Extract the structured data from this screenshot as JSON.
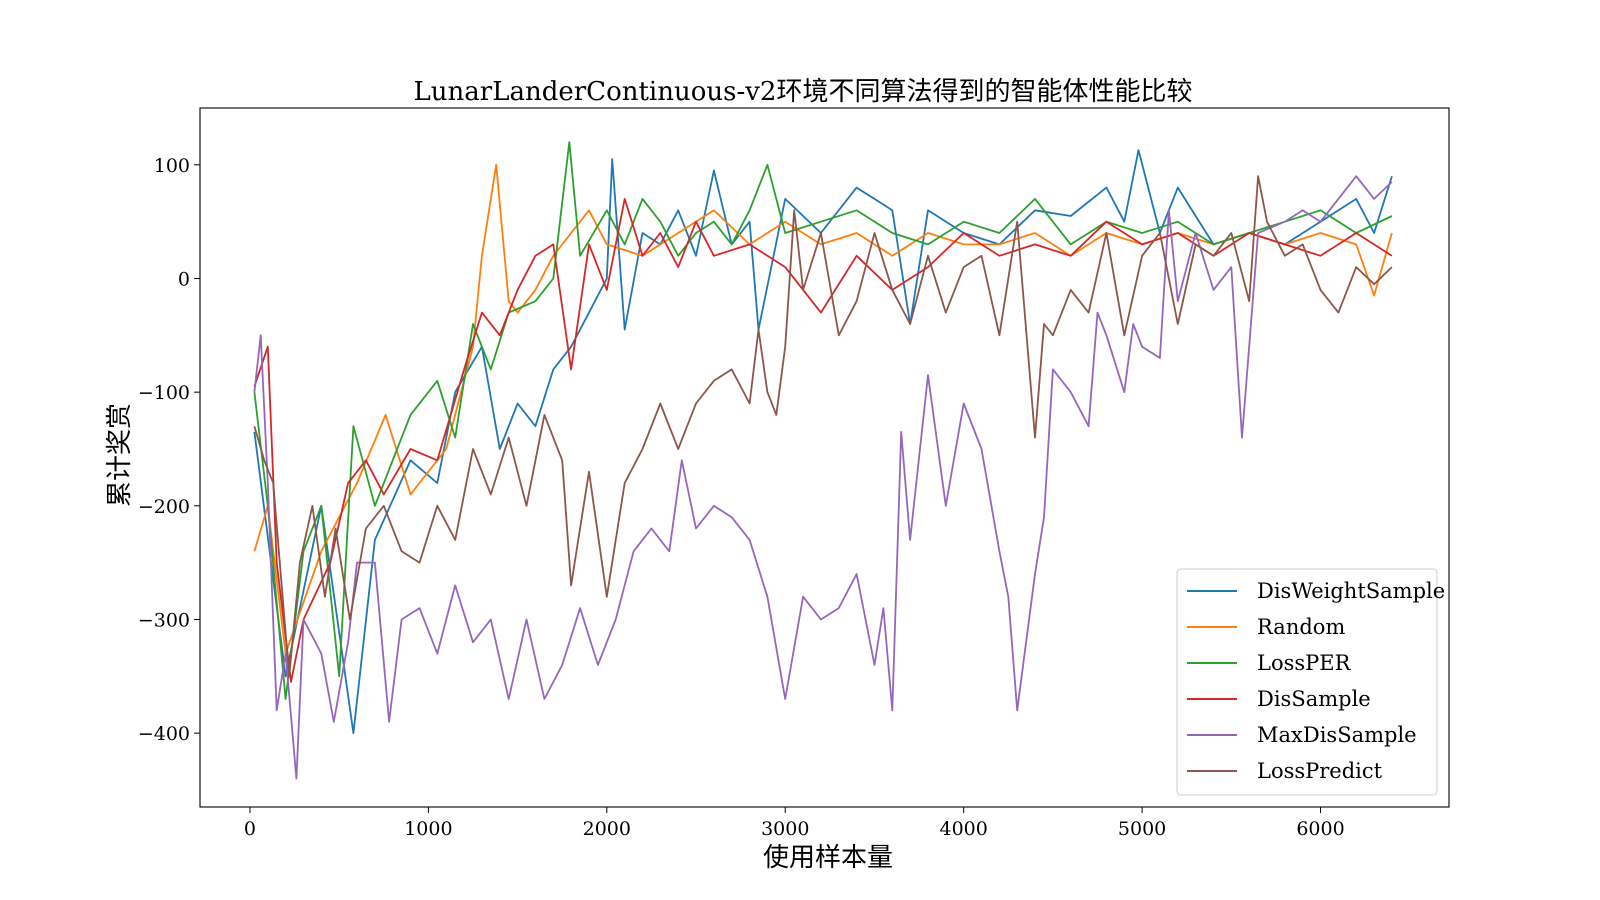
{
  "chart_data": {
    "type": "line",
    "title": "LunarLanderContinuous-v2环境不同算法得到的智能体性能比较",
    "xlabel": "使用样本量",
    "ylabel": "累计奖赏",
    "xlim": [
      -280,
      6720
    ],
    "ylim": [
      -465,
      150
    ],
    "xticks": [
      0,
      1000,
      2000,
      3000,
      4000,
      5000,
      6000
    ],
    "yticks": [
      -400,
      -300,
      -200,
      -100,
      0,
      100
    ],
    "xtick_labels": [
      "0",
      "1000",
      "2000",
      "3000",
      "4000",
      "5000",
      "6000"
    ],
    "ytick_labels": [
      "−400",
      "−300",
      "−200",
      "−100",
      "0",
      "100"
    ],
    "grid": false,
    "legend_position": "lower-right",
    "series": [
      {
        "name": "DisWeightSample",
        "color": "#1f77b4",
        "x": [
          25,
          200,
          400,
          580,
          700,
          900,
          1050,
          1150,
          1300,
          1400,
          1500,
          1600,
          1700,
          1800,
          1900,
          2000,
          2030,
          2100,
          2200,
          2300,
          2400,
          2500,
          2600,
          2700,
          2800,
          2850,
          3000,
          3200,
          3400,
          3500,
          3600,
          3700,
          3800,
          4000,
          4200,
          4400,
          4600,
          4800,
          4900,
          4980,
          5100,
          5200,
          5400,
          5600,
          5800,
          6000,
          6200,
          6300,
          6400
        ],
        "values": [
          -135,
          -350,
          -200,
          -400,
          -230,
          -160,
          -180,
          -100,
          -60,
          -150,
          -110,
          -130,
          -80,
          -60,
          -30,
          0,
          105,
          -45,
          40,
          30,
          60,
          20,
          95,
          30,
          50,
          -45,
          70,
          40,
          80,
          70,
          60,
          -40,
          60,
          40,
          30,
          60,
          55,
          80,
          50,
          113,
          40,
          80,
          30,
          40,
          30,
          50,
          70,
          40,
          90
        ]
      },
      {
        "name": "Random",
        "color": "#ff7f0e",
        "x": [
          25,
          100,
          200,
          400,
          600,
          760,
          900,
          1100,
          1250,
          1300,
          1380,
          1450,
          1500,
          1600,
          1700,
          1800,
          1900,
          2000,
          2200,
          2400,
          2600,
          2800,
          3000,
          3200,
          3400,
          3600,
          3800,
          4000,
          4200,
          4400,
          4600,
          4800,
          5000,
          5200,
          5400,
          5600,
          5800,
          6000,
          6200,
          6300,
          6400
        ],
        "values": [
          -240,
          -200,
          -330,
          -240,
          -180,
          -120,
          -190,
          -150,
          -60,
          20,
          100,
          -20,
          -30,
          -10,
          20,
          40,
          60,
          30,
          20,
          40,
          60,
          30,
          50,
          30,
          40,
          20,
          40,
          30,
          30,
          40,
          20,
          40,
          30,
          40,
          30,
          40,
          30,
          40,
          30,
          -15,
          40
        ]
      },
      {
        "name": "LossPER",
        "color": "#2ca02c",
        "x": [
          25,
          100,
          200,
          300,
          400,
          500,
          580,
          700,
          900,
          1050,
          1150,
          1250,
          1350,
          1450,
          1600,
          1700,
          1790,
          1850,
          2000,
          2100,
          2200,
          2300,
          2400,
          2500,
          2600,
          2700,
          2800,
          2900,
          3000,
          3200,
          3400,
          3600,
          3800,
          4000,
          4200,
          4400,
          4600,
          4800,
          5000,
          5200,
          5400,
          5600,
          5800,
          6000,
          6200,
          6400
        ],
        "values": [
          -100,
          -200,
          -370,
          -240,
          -200,
          -350,
          -130,
          -200,
          -120,
          -90,
          -140,
          -40,
          -80,
          -30,
          -20,
          0,
          120,
          20,
          60,
          30,
          70,
          50,
          20,
          40,
          50,
          30,
          60,
          100,
          40,
          50,
          60,
          40,
          30,
          50,
          40,
          70,
          30,
          50,
          40,
          50,
          30,
          40,
          50,
          60,
          40,
          55
        ]
      },
      {
        "name": "DisSample",
        "color": "#d62728",
        "x": [
          25,
          100,
          150,
          230,
          300,
          450,
          550,
          650,
          750,
          900,
          1050,
          1200,
          1300,
          1400,
          1500,
          1600,
          1700,
          1800,
          1900,
          2000,
          2100,
          2200,
          2300,
          2400,
          2500,
          2600,
          2800,
          3000,
          3200,
          3400,
          3600,
          3800,
          4000,
          4200,
          4400,
          4600,
          4800,
          5000,
          5200,
          5400,
          5600,
          5800,
          6000,
          6200,
          6400
        ],
        "values": [
          -95,
          -60,
          -250,
          -355,
          -300,
          -250,
          -180,
          -160,
          -190,
          -150,
          -160,
          -80,
          -30,
          -50,
          -10,
          20,
          30,
          -80,
          30,
          -10,
          70,
          20,
          40,
          10,
          50,
          20,
          30,
          10,
          -30,
          20,
          -10,
          10,
          40,
          20,
          30,
          20,
          50,
          30,
          40,
          20,
          40,
          30,
          20,
          40,
          20
        ]
      },
      {
        "name": "MaxDisSample",
        "color": "#9467bd",
        "x": [
          25,
          60,
          100,
          150,
          200,
          260,
          300,
          400,
          470,
          550,
          600,
          700,
          780,
          850,
          950,
          1050,
          1150,
          1250,
          1350,
          1450,
          1550,
          1650,
          1750,
          1850,
          1950,
          2050,
          2150,
          2250,
          2350,
          2420,
          2500,
          2600,
          2700,
          2800,
          2900,
          3000,
          3100,
          3200,
          3300,
          3400,
          3500,
          3550,
          3600,
          3650,
          3700,
          3800,
          3900,
          4000,
          4100,
          4200,
          4250,
          4300,
          4400,
          4450,
          4500,
          4600,
          4700,
          4750,
          4800,
          4900,
          4950,
          5000,
          5100,
          5150,
          5200,
          5300,
          5400,
          5500,
          5560,
          5650,
          5800,
          5900,
          6000,
          6100,
          6200,
          6300,
          6400
        ],
        "values": [
          -100,
          -50,
          -180,
          -380,
          -330,
          -440,
          -300,
          -330,
          -390,
          -320,
          -250,
          -250,
          -390,
          -300,
          -290,
          -330,
          -270,
          -320,
          -300,
          -370,
          -300,
          -370,
          -340,
          -290,
          -340,
          -300,
          -240,
          -220,
          -240,
          -160,
          -220,
          -200,
          -210,
          -230,
          -280,
          -370,
          -280,
          -300,
          -290,
          -260,
          -340,
          -290,
          -380,
          -135,
          -230,
          -85,
          -200,
          -110,
          -150,
          -240,
          -280,
          -380,
          -260,
          -210,
          -80,
          -100,
          -130,
          -30,
          -50,
          -100,
          -40,
          -60,
          -70,
          60,
          -20,
          40,
          -10,
          10,
          -140,
          40,
          50,
          60,
          50,
          70,
          90,
          70,
          85
        ]
      },
      {
        "name": "LossPredict",
        "color": "#8c564b",
        "x": [
          25,
          80,
          130,
          220,
          280,
          350,
          420,
          480,
          560,
          650,
          750,
          850,
          950,
          1050,
          1150,
          1250,
          1350,
          1450,
          1550,
          1650,
          1750,
          1800,
          1900,
          2000,
          2100,
          2200,
          2300,
          2400,
          2450,
          2500,
          2600,
          2700,
          2800,
          2850,
          2900,
          2950,
          3000,
          3050,
          3100,
          3200,
          3300,
          3400,
          3500,
          3600,
          3700,
          3800,
          3900,
          4000,
          4100,
          4200,
          4300,
          4400,
          4450,
          4500,
          4600,
          4700,
          4800,
          4900,
          5000,
          5100,
          5200,
          5300,
          5400,
          5500,
          5600,
          5650,
          5700,
          5800,
          5900,
          6000,
          6100,
          6200,
          6300,
          6400
        ],
        "values": [
          -130,
          -160,
          -180,
          -350,
          -250,
          -200,
          -280,
          -220,
          -300,
          -220,
          -200,
          -240,
          -250,
          -200,
          -230,
          -150,
          -190,
          -140,
          -200,
          -120,
          -160,
          -270,
          -170,
          -280,
          -180,
          -150,
          -110,
          -150,
          -130,
          -110,
          -90,
          -80,
          -110,
          -45,
          -100,
          -120,
          -60,
          60,
          -10,
          40,
          -50,
          -20,
          40,
          -10,
          -40,
          20,
          -30,
          10,
          20,
          -50,
          50,
          -140,
          -40,
          -50,
          -10,
          -30,
          40,
          -50,
          20,
          40,
          -40,
          30,
          20,
          40,
          -20,
          90,
          50,
          20,
          30,
          -10,
          -30,
          10,
          -5,
          10
        ]
      }
    ]
  }
}
